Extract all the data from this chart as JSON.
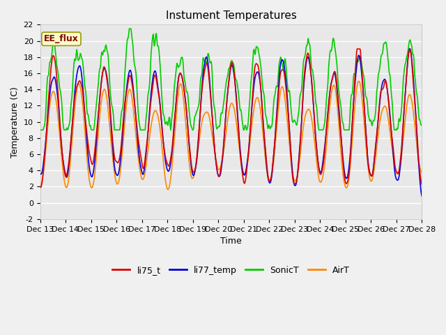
{
  "title": "Instument Temperatures",
  "xlabel": "Time",
  "ylabel": "Temperature (C)",
  "ylim": [
    -2,
    22
  ],
  "yticks": [
    -2,
    0,
    2,
    4,
    6,
    8,
    10,
    12,
    14,
    16,
    18,
    20,
    22
  ],
  "x_labels": [
    "Dec 13",
    "Dec 14",
    "Dec 15",
    "Dec 16",
    "Dec 17",
    "Dec 18",
    "Dec 19",
    "Dec 20",
    "Dec 21",
    "Dec 22",
    "Dec 23",
    "Dec 24",
    "Dec 25",
    "Dec 26",
    "Dec 27",
    "Dec 28"
  ],
  "series": {
    "li75_t": {
      "color": "#dd0000",
      "linewidth": 1.2
    },
    "li77_temp": {
      "color": "#0000dd",
      "linewidth": 1.2
    },
    "SonicT": {
      "color": "#00cc00",
      "linewidth": 1.2
    },
    "AirT": {
      "color": "#ff8800",
      "linewidth": 1.2
    }
  },
  "annotation_text": "EE_flux",
  "annotation_color": "#880000",
  "background_color": "#e8e8e8",
  "figure_color": "#f0f0f0",
  "title_fontsize": 11,
  "axis_fontsize": 9,
  "tick_fontsize": 8,
  "legend_fontsize": 9
}
